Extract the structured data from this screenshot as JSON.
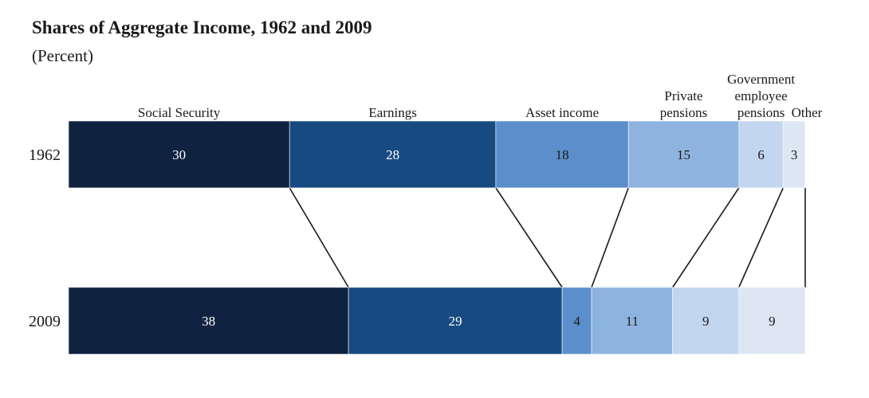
{
  "chart_data": {
    "type": "bar",
    "title": "Shares of Aggregate Income, 1962 and 2009",
    "subtitle": "(Percent)",
    "stacked": true,
    "orientation": "horizontal",
    "categories": [
      "1962",
      "2009"
    ],
    "series": [
      {
        "name": "Social Security",
        "values": [
          30,
          38
        ],
        "color": "#0f2340",
        "label_color": "#ffffff"
      },
      {
        "name": "Earnings",
        "values": [
          28,
          29
        ],
        "color": "#174a80",
        "label_color": "#ffffff"
      },
      {
        "name": "Asset income",
        "values": [
          18,
          4
        ],
        "color": "#5b8ecb",
        "label_color": "#1a1a1a"
      },
      {
        "name": "Private pensions",
        "values": [
          15,
          11
        ],
        "color": "#8fb3df",
        "label_color": "#1a1a1a"
      },
      {
        "name": "Government employee pensions",
        "values": [
          6,
          9
        ],
        "color": "#c3d6ef",
        "label_color": "#1a1a1a"
      },
      {
        "name": "Other",
        "values": [
          3,
          9
        ],
        "color": "#dde7f4",
        "label_color": "#1a1a1a"
      }
    ],
    "legend": [
      {
        "lines": [
          "Social Security"
        ]
      },
      {
        "lines": [
          "Earnings"
        ]
      },
      {
        "lines": [
          "Asset income"
        ]
      },
      {
        "lines": [
          "Private",
          "pensions"
        ]
      },
      {
        "lines": [
          "Government",
          "employee",
          "pensions"
        ]
      },
      {
        "lines": [
          "Other"
        ]
      }
    ],
    "legend_position": "top",
    "grid": false,
    "connector_lines": true
  }
}
